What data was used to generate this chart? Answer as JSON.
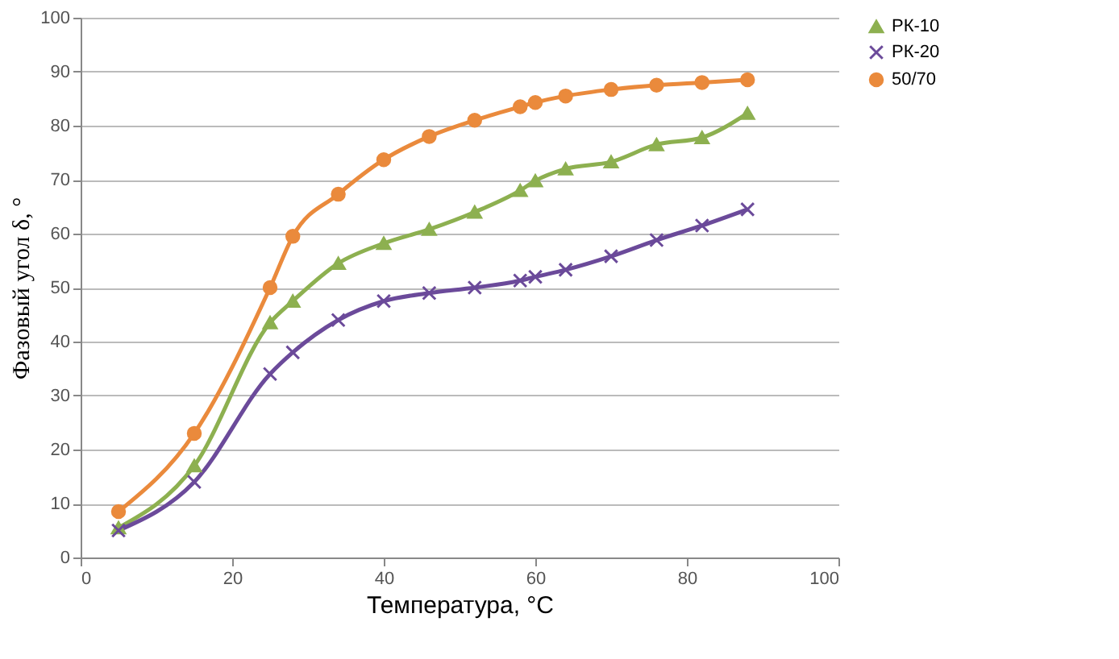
{
  "chart_data": {
    "type": "line",
    "xlabel": "Температура, °C",
    "ylabel": "Фазовый угол δ, °",
    "x": [
      5,
      15,
      25,
      28,
      34,
      40,
      46,
      52,
      58,
      60,
      64,
      70,
      76,
      82,
      88
    ],
    "series": [
      {
        "name": "РК-10",
        "color": "#8db050",
        "marker": "triangle",
        "values": [
          5.5,
          17,
          43.5,
          47.5,
          54.5,
          58.2,
          60.8,
          64,
          68,
          69.8,
          72,
          73.3,
          76.5,
          77.8,
          82.3
        ]
      },
      {
        "name": "РК-20",
        "color": "#6b4a9a",
        "marker": "cross",
        "values": [
          5,
          14,
          34,
          38,
          44,
          47.5,
          49,
          50,
          51.3,
          52,
          53.3,
          55.8,
          58.8,
          61.5,
          64.5
        ]
      },
      {
        "name": "50/70",
        "color": "#ea8a3c",
        "marker": "circle",
        "values": [
          8.5,
          23,
          50,
          59.5,
          67.3,
          73.7,
          78,
          81,
          83.5,
          84.3,
          85.5,
          86.7,
          87.5,
          88,
          88.5
        ]
      }
    ],
    "xlim": [
      0,
      100
    ],
    "xticks": [
      0,
      20,
      40,
      60,
      80,
      100
    ],
    "ylim": [
      0,
      100
    ],
    "yticks": [
      0,
      10,
      20,
      30,
      40,
      50,
      60,
      70,
      80,
      90,
      100
    ],
    "grid": "y",
    "legend": "right",
    "line_style": "solid"
  }
}
